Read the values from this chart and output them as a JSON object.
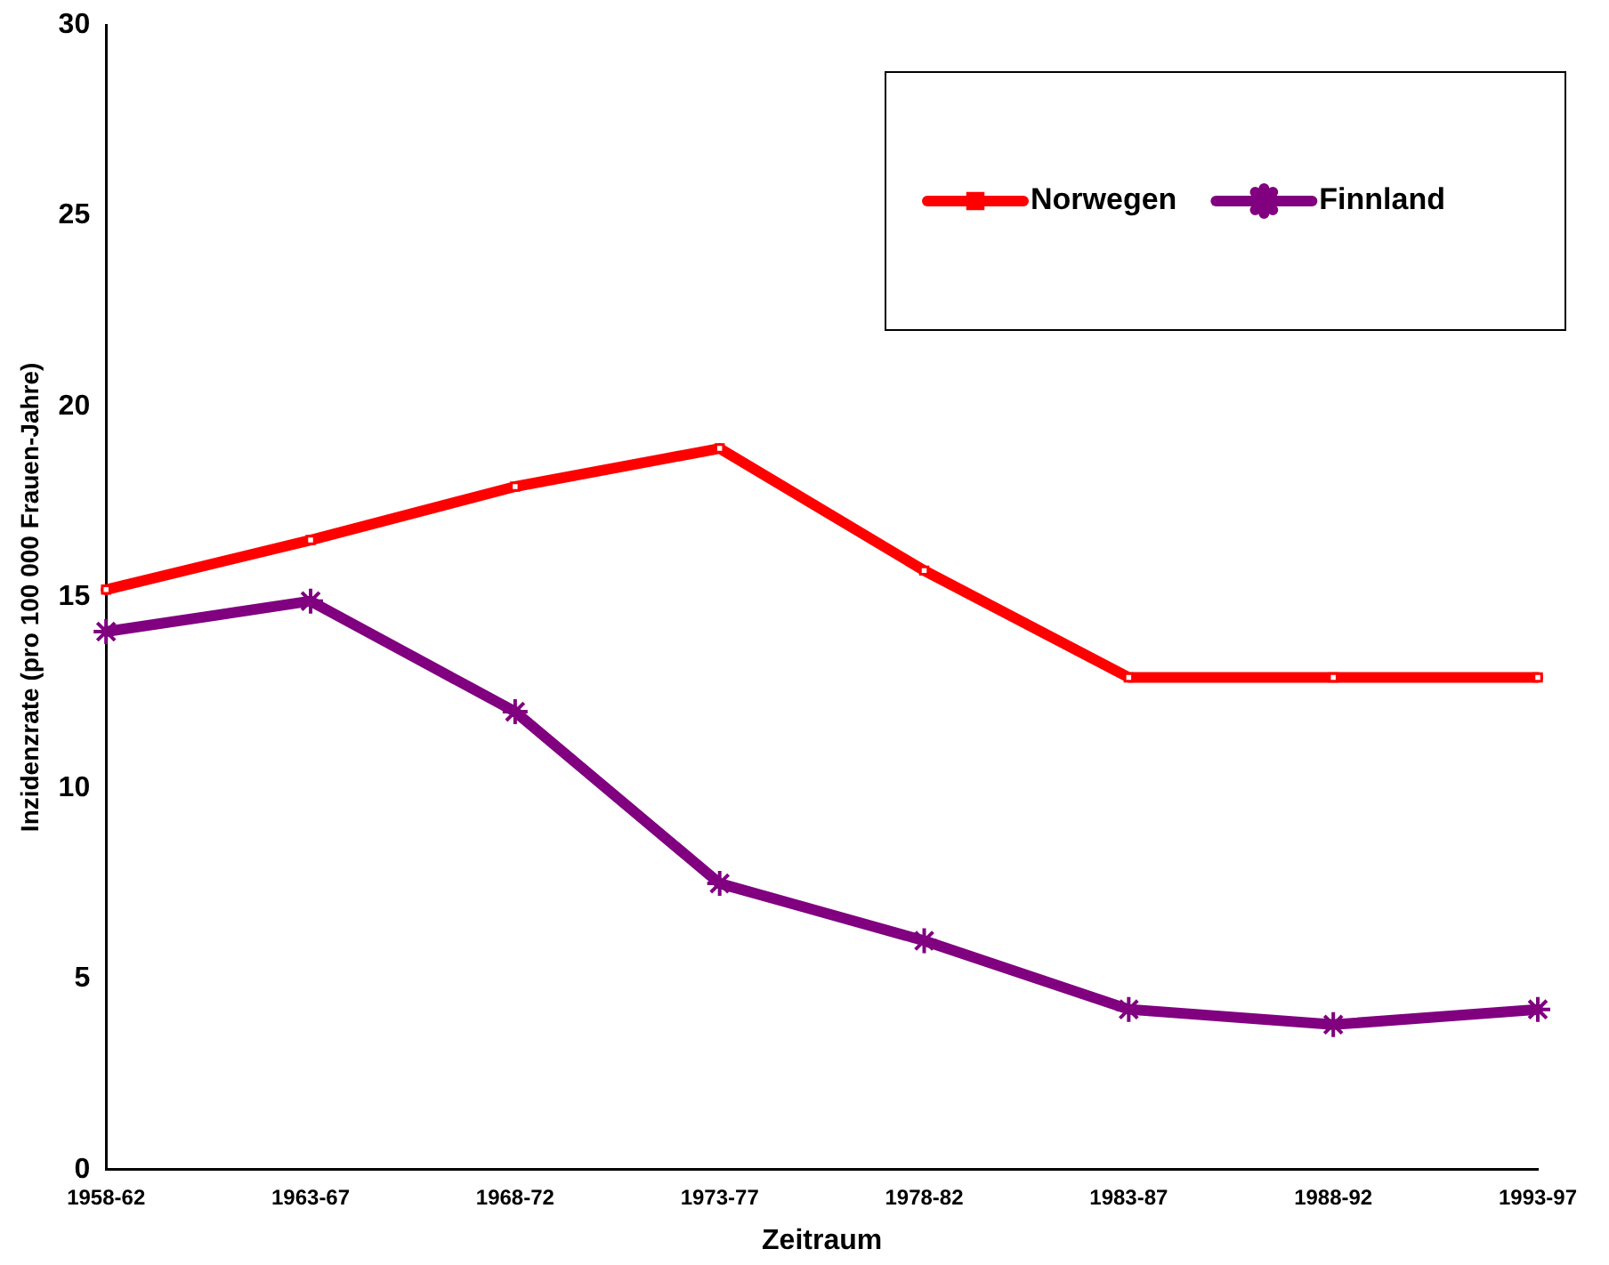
{
  "chart_data": {
    "type": "line",
    "xlabel": "Zeitraum",
    "ylabel": "Inzidenzrate (pro 100 000 Frauen-Jahre)",
    "categories": [
      "1958-62",
      "1963-67",
      "1968-72",
      "1973-77",
      "1978-82",
      "1983-87",
      "1988-92",
      "1993-97"
    ],
    "series": [
      {
        "name": "Norwegen",
        "color": "#ff0000",
        "marker": "square",
        "values": [
          15.2,
          16.5,
          17.9,
          18.9,
          15.7,
          12.9,
          12.9,
          12.9
        ]
      },
      {
        "name": "Finnland",
        "color": "#800080",
        "marker": "cross",
        "values": [
          14.1,
          14.9,
          12.0,
          7.5,
          6.0,
          4.2,
          3.8,
          4.2
        ]
      }
    ],
    "ylim": [
      0,
      30
    ],
    "yticks": [
      0,
      5,
      10,
      15,
      20,
      25,
      30
    ],
    "grid": false,
    "legend": "top right",
    "line_style": "solid"
  }
}
